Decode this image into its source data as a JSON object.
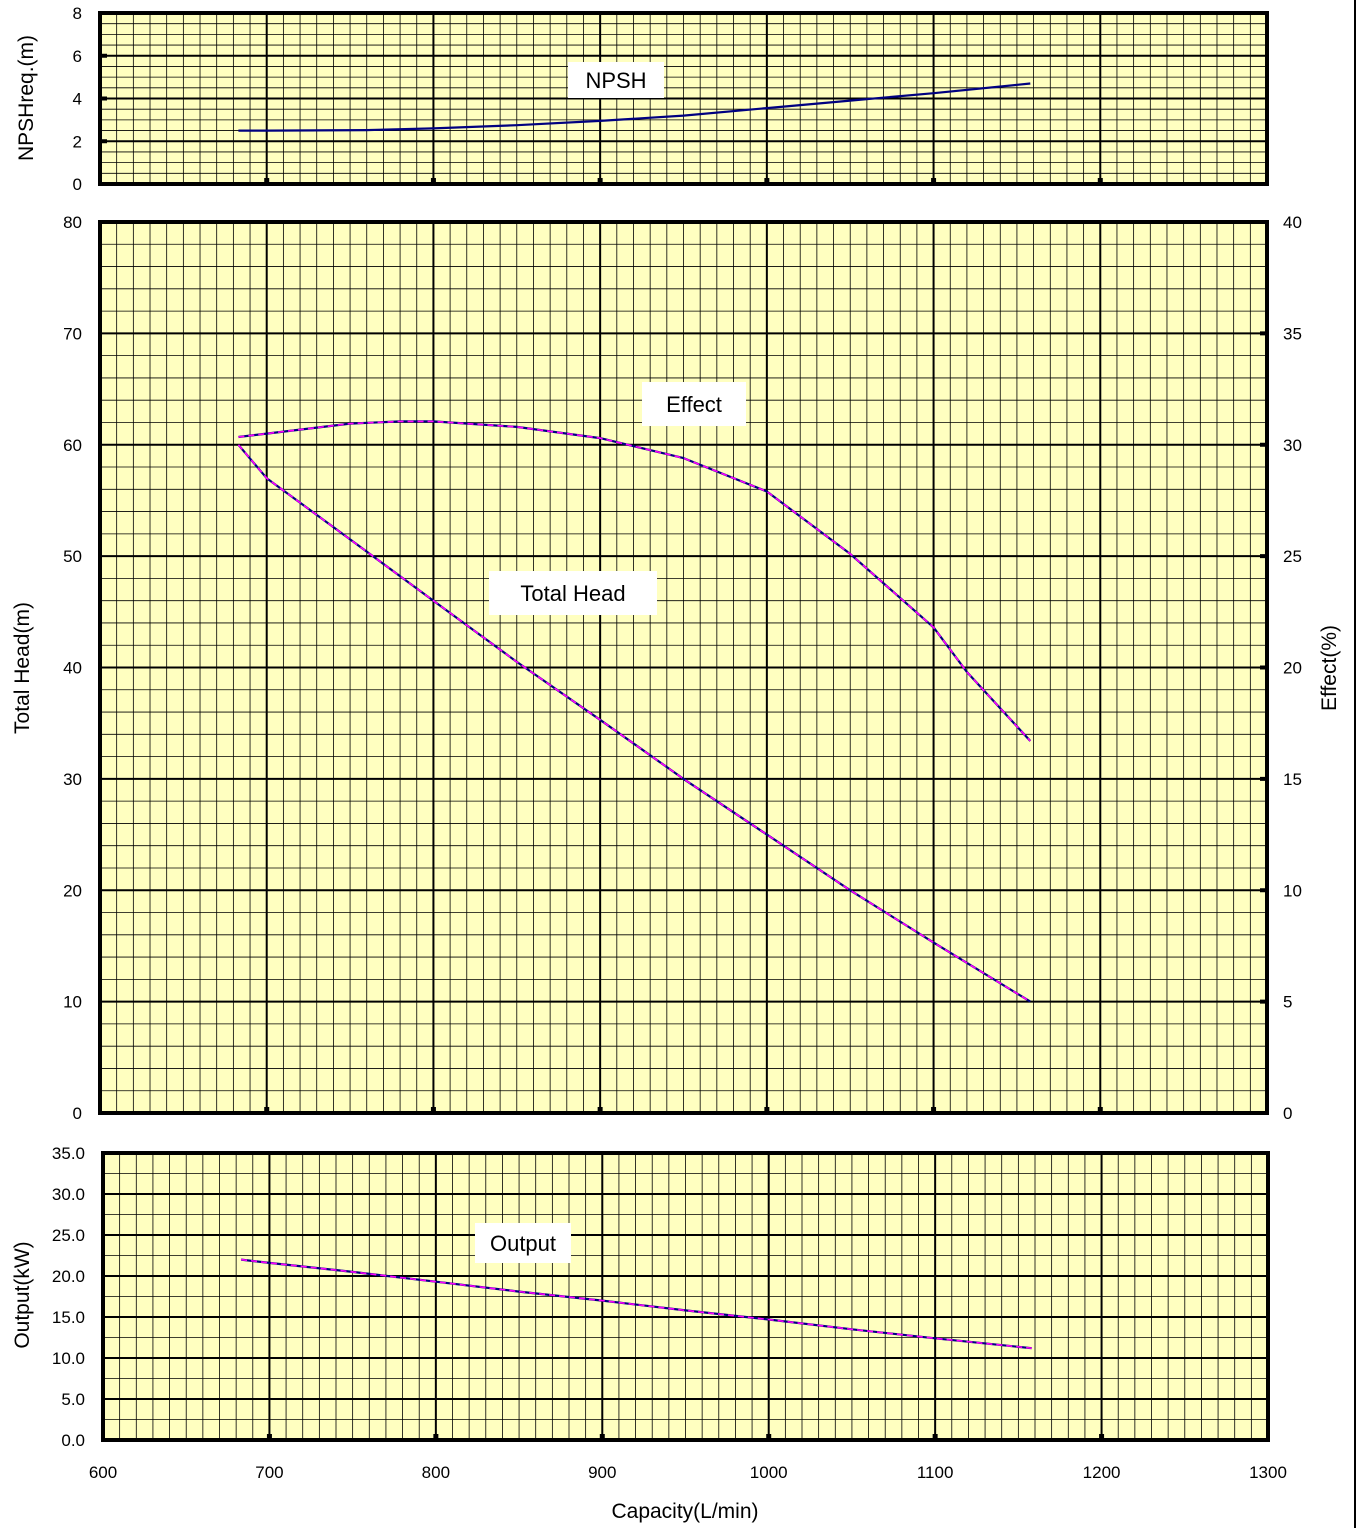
{
  "colors": {
    "plot_background": "#ffffc0",
    "frame": "#000000",
    "npsh_curve": "#000080",
    "curve_overlay": "#ff00ff"
  },
  "chart_data": [
    {
      "type": "line",
      "panel": "npsh",
      "ylabel": "NPSHreq.(m)",
      "xlim": [
        600,
        1300
      ],
      "ylim": [
        0,
        8
      ],
      "y_ticks": [
        "0",
        "2",
        "4",
        "6",
        "8"
      ],
      "grid": true,
      "series": [
        {
          "name": "NPSH",
          "x": [
            683,
            700,
            760,
            800,
            850,
            900,
            950,
            1000,
            1050,
            1100,
            1158
          ],
          "y": [
            2.5,
            2.5,
            2.52,
            2.6,
            2.75,
            2.95,
            3.2,
            3.55,
            3.9,
            4.25,
            4.7
          ]
        }
      ]
    },
    {
      "type": "line",
      "panel": "head_effect",
      "ylabel": "Total Head(m)",
      "y2label": "Effect(%)",
      "xlim": [
        600,
        1300
      ],
      "ylim": [
        0,
        80
      ],
      "y2lim": [
        0,
        40
      ],
      "y_ticks": [
        "0",
        "10",
        "20",
        "30",
        "40",
        "50",
        "60",
        "70",
        "80"
      ],
      "y2_ticks": [
        "0",
        "5",
        "10",
        "15",
        "20",
        "25",
        "30",
        "35",
        "40"
      ],
      "grid": true,
      "series": [
        {
          "name": "Total Head",
          "axis": "left",
          "x": [
            683,
            700,
            750,
            800,
            850,
            900,
            950,
            1000,
            1050,
            1100,
            1158
          ],
          "y": [
            60,
            57,
            51.5,
            46,
            40.5,
            35.3,
            30,
            25,
            20,
            15.3,
            10
          ]
        },
        {
          "name": "Effect",
          "axis": "right",
          "x": [
            683,
            700,
            750,
            780,
            800,
            850,
            900,
            950,
            1000,
            1050,
            1100,
            1120,
            1158
          ],
          "y": [
            30.35,
            30.5,
            30.95,
            31.05,
            31.05,
            30.8,
            30.3,
            29.4,
            27.9,
            25.1,
            21.8,
            19.8,
            16.7
          ]
        }
      ]
    },
    {
      "type": "line",
      "panel": "output",
      "ylabel": "Output(kW)",
      "xlabel": "Capacity(L/min)",
      "xlim": [
        600,
        1300
      ],
      "ylim": [
        0,
        35
      ],
      "x_ticks": [
        "600",
        "700",
        "800",
        "900",
        "1000",
        "1100",
        "1200",
        "1300"
      ],
      "y_ticks": [
        "0.0",
        "5.0",
        "10.0",
        "15.0",
        "20.0",
        "25.0",
        "30.0",
        "35.0"
      ],
      "grid": true,
      "series": [
        {
          "name": "Output",
          "x": [
            683,
            700,
            750,
            800,
            850,
            900,
            950,
            1000,
            1050,
            1100,
            1158
          ],
          "y": [
            22.0,
            21.6,
            20.5,
            19.3,
            18.1,
            17.0,
            15.8,
            14.7,
            13.5,
            12.4,
            11.2
          ]
        }
      ]
    }
  ]
}
